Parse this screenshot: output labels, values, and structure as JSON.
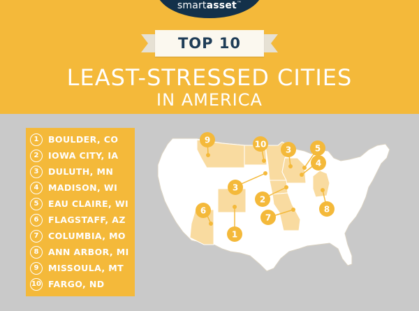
{
  "header": {
    "logo": {
      "prefix": "smart",
      "suffix": "asset",
      "tm": "™"
    },
    "ribbon_text": "TOP 10",
    "title": "LEAST-STRESSED CITIES",
    "subtitle": "IN AMERICA"
  },
  "colors": {
    "header_bg": "#f4b93a",
    "logo_bg": "#13314a",
    "map_fill": "#ffffff",
    "highlight_fill": "#f9dba0",
    "marker": "#f4b93a",
    "background": "#c9c9c9"
  },
  "cities": [
    {
      "rank": "1",
      "name": "BOULDER, CO"
    },
    {
      "rank": "2",
      "name": "IOWA CITY, IA"
    },
    {
      "rank": "3",
      "name": "DULUTH, MN"
    },
    {
      "rank": "4",
      "name": "MADISON, WI"
    },
    {
      "rank": "5",
      "name": "EAU CLAIRE, WI"
    },
    {
      "rank": "6",
      "name": "FLAGSTAFF, AZ"
    },
    {
      "rank": "7",
      "name": "COLUMBIA, MO"
    },
    {
      "rank": "8",
      "name": "ANN ARBOR, MI"
    },
    {
      "rank": "9",
      "name": "MISSOULA, MT"
    },
    {
      "rank": "10",
      "name": "FARGO, ND"
    }
  ]
}
